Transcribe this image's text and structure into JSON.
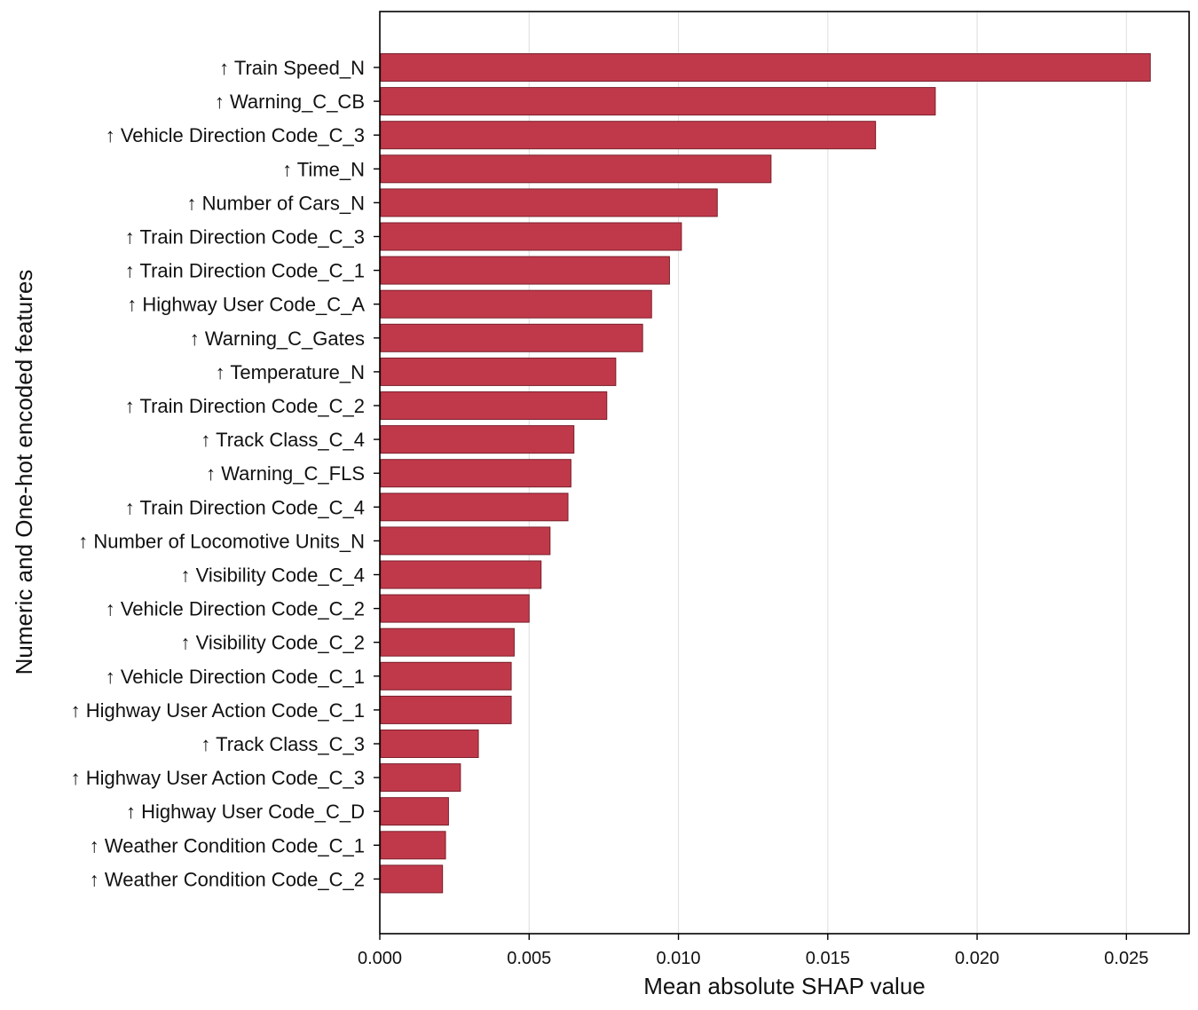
{
  "chart_data": {
    "type": "bar",
    "orientation": "horizontal",
    "title": "",
    "xlabel": "Mean absolute SHAP value",
    "ylabel": "Numeric and One-hot encoded features",
    "xlim": [
      0.0,
      0.0271
    ],
    "xticks": [
      "0.000",
      "0.005",
      "0.010",
      "0.015",
      "0.020",
      "0.025"
    ],
    "xtick_values": [
      0.0,
      0.005,
      0.01,
      0.015,
      0.02,
      0.025
    ],
    "grid": "vertical",
    "bar_color": "#c0394a",
    "bar_edge_color": "#7a1f2b",
    "categories": [
      "↑ Train Speed_N",
      "↑ Warning_C_CB",
      "↑ Vehicle Direction Code_C_3",
      "↑ Time_N",
      "↑ Number of Cars_N",
      "↑ Train Direction Code_C_3",
      "↑ Train Direction Code_C_1",
      "↑ Highway User Code_C_A",
      "↑ Warning_C_Gates",
      "↑ Temperature_N",
      "↑ Train Direction Code_C_2",
      "↑ Track Class_C_4",
      "↑ Warning_C_FLS",
      "↑ Train Direction Code_C_4",
      "↑ Number of Locomotive Units_N",
      "↑ Visibility Code_C_4",
      "↑ Vehicle Direction Code_C_2",
      "↑ Visibility Code_C_2",
      "↑ Vehicle Direction Code_C_1",
      "↑ Highway User Action Code_C_1",
      "↑ Track Class_C_3",
      "↑ Highway User Action Code_C_3",
      "↑ Highway User Code_C_D",
      "↑ Weather Condition Code_C_1",
      "↑ Weather Condition Code_C_2"
    ],
    "values": [
      0.0258,
      0.0186,
      0.0166,
      0.0131,
      0.0113,
      0.0101,
      0.0097,
      0.0091,
      0.0088,
      0.0079,
      0.0076,
      0.0065,
      0.0064,
      0.0063,
      0.0057,
      0.0054,
      0.005,
      0.0045,
      0.0044,
      0.0044,
      0.0033,
      0.0027,
      0.0023,
      0.0022,
      0.0021
    ]
  }
}
